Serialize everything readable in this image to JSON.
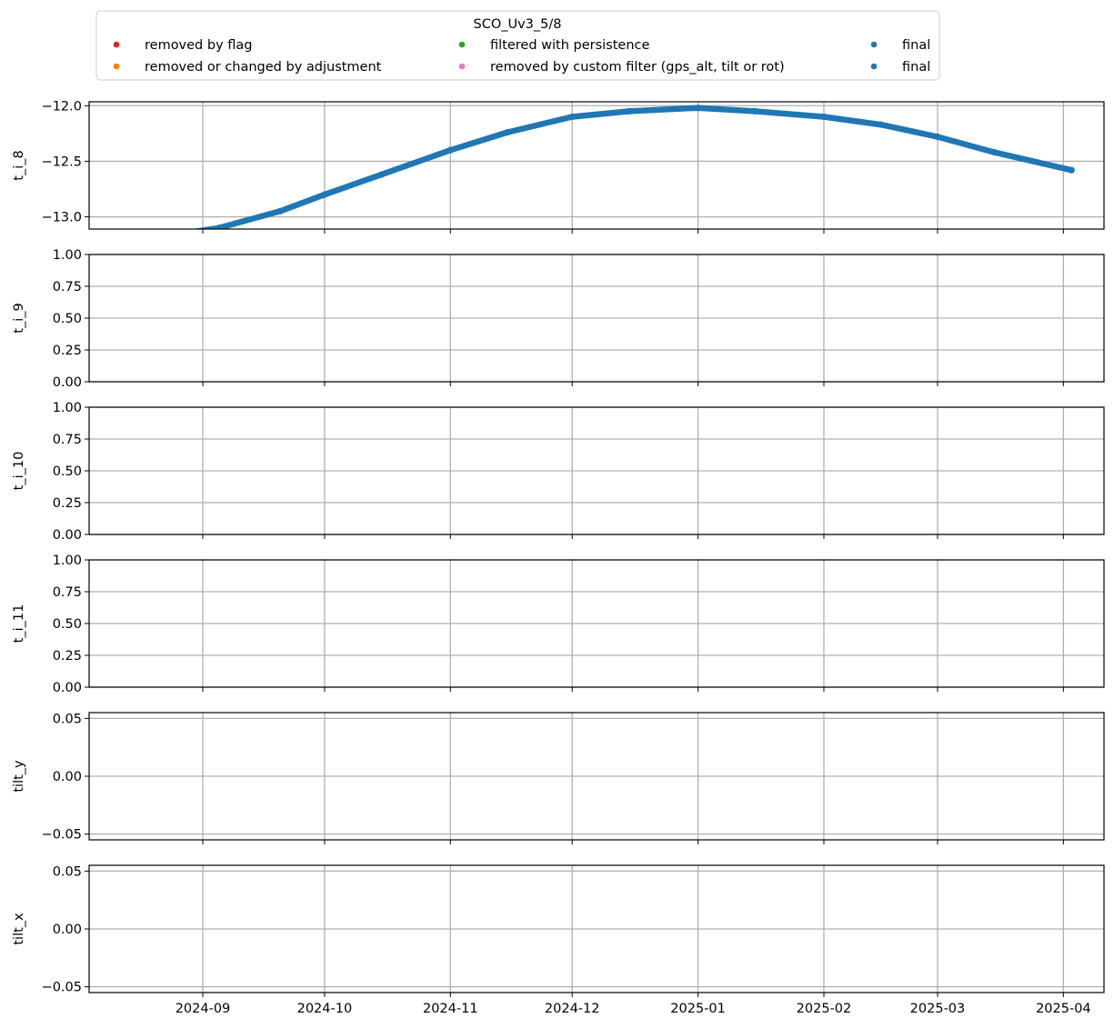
{
  "chart_data": {
    "type": "scatter",
    "legend": {
      "title": "SCO_Uv3_5/8",
      "placement": "top-center",
      "entries": [
        {
          "label": "removed by flag",
          "color": "#d62728"
        },
        {
          "label": "removed or changed by adjustment",
          "color": "#ff7f0e"
        },
        {
          "label": "filtered with persistence",
          "color": "#2ca02c"
        },
        {
          "label": "removed by custom filter (gps_alt, tilt or rot)",
          "color": "#e377c2"
        },
        {
          "label": "final",
          "color": "#1f77b4"
        },
        {
          "label": "final",
          "color": "#1f77b4"
        }
      ]
    },
    "shared_x": {
      "type": "date",
      "range": [
        "2024-08-04",
        "2025-04-11"
      ],
      "ticks": [
        "2024-09-01",
        "2024-10-01",
        "2024-11-01",
        "2024-12-01",
        "2025-01-01",
        "2025-02-01",
        "2025-03-01",
        "2025-04-01"
      ],
      "tick_labels": [
        "2024-09",
        "2024-10",
        "2024-11",
        "2024-12",
        "2025-01",
        "2025-02",
        "2025-03",
        "2025-04"
      ]
    },
    "grid": true,
    "panels": [
      {
        "ylabel": "t_i_8",
        "ylim": [
          -13.11,
          -11.965
        ],
        "yticks": [
          -12.0,
          -12.5,
          -13.0
        ],
        "ytick_labels": [
          "−12.0",
          "−12.5",
          "−13.0"
        ],
        "series": [
          {
            "color": "#1f77b4",
            "x": [
              "2024-08-15",
              "2024-08-25",
              "2024-09-05",
              "2024-09-20",
              "2024-10-01",
              "2024-10-15",
              "2024-11-01",
              "2024-11-15",
              "2024-12-01",
              "2024-12-15",
              "2025-01-01",
              "2025-01-15",
              "2025-02-01",
              "2025-02-15",
              "2025-03-01",
              "2025-03-15",
              "2025-04-03"
            ],
            "y": [
              -13.21,
              -13.16,
              -13.1,
              -12.95,
              -12.8,
              -12.62,
              -12.4,
              -12.24,
              -12.1,
              -12.05,
              -12.02,
              -12.05,
              -12.1,
              -12.17,
              -12.28,
              -12.42,
              -12.58
            ]
          }
        ]
      },
      {
        "ylabel": "t_i_9",
        "ylim": [
          0,
          1
        ],
        "yticks": [
          0,
          0.25,
          0.5,
          0.75,
          1.0
        ],
        "ytick_labels": [
          "0.00",
          "0.25",
          "0.50",
          "0.75",
          "1.00"
        ],
        "series": []
      },
      {
        "ylabel": "t_i_10",
        "ylim": [
          0,
          1
        ],
        "yticks": [
          0,
          0.25,
          0.5,
          0.75,
          1.0
        ],
        "ytick_labels": [
          "0.00",
          "0.25",
          "0.50",
          "0.75",
          "1.00"
        ],
        "series": []
      },
      {
        "ylabel": "t_i_11",
        "ylim": [
          0,
          1
        ],
        "yticks": [
          0,
          0.25,
          0.5,
          0.75,
          1.0
        ],
        "ytick_labels": [
          "0.00",
          "0.25",
          "0.50",
          "0.75",
          "1.00"
        ],
        "series": []
      },
      {
        "ylabel": "tilt_y",
        "ylim": [
          -0.055,
          0.055
        ],
        "yticks": [
          0.05,
          0.0,
          -0.05
        ],
        "ytick_labels": [
          "0.05",
          "0.00",
          "−0.05"
        ],
        "series": []
      },
      {
        "ylabel": "tilt_x",
        "ylim": [
          -0.055,
          0.055
        ],
        "yticks": [
          0.05,
          0.0,
          -0.05
        ],
        "ytick_labels": [
          "0.05",
          "0.00",
          "−0.05"
        ],
        "series": []
      }
    ]
  }
}
